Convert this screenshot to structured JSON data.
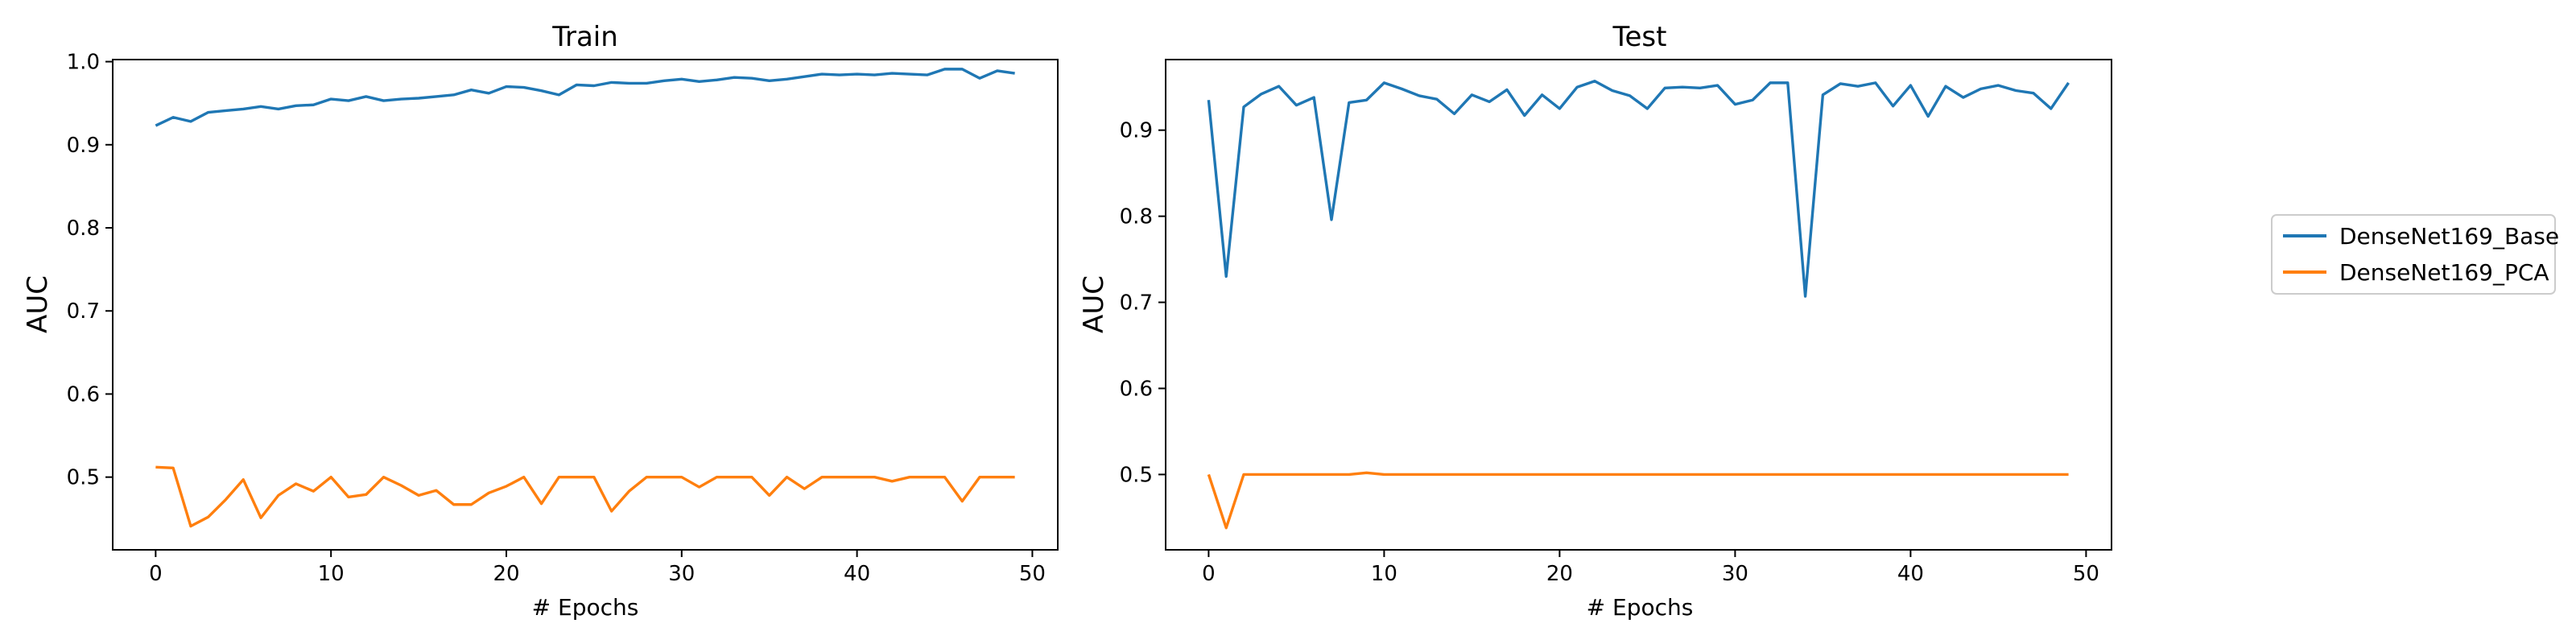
{
  "colors": {
    "base": "#1f77b4",
    "pca": "#ff7f0e",
    "legend_border": "#cccccc"
  },
  "legend": {
    "placement": "right-outside",
    "entries": [
      "DenseNet169_Base",
      "DenseNet169_PCA"
    ]
  },
  "chart_data": [
    {
      "type": "line",
      "title": "Train",
      "xlabel": "# Epochs",
      "ylabel": "AUC",
      "xlim": [
        -2.45,
        51.45
      ],
      "ylim": [
        0.4125,
        1.0025
      ],
      "xticks": [
        0,
        10,
        20,
        30,
        40,
        50
      ],
      "yticks": [
        0.5,
        0.6,
        0.7,
        0.8,
        0.9,
        1.0
      ],
      "ytick_labels": [
        "0.5",
        "0.6",
        "0.7",
        "0.8",
        "0.9",
        "1.0"
      ],
      "grid": false,
      "x": [
        0,
        1,
        2,
        3,
        4,
        5,
        6,
        7,
        8,
        9,
        10,
        11,
        12,
        13,
        14,
        15,
        16,
        17,
        18,
        19,
        20,
        21,
        22,
        23,
        24,
        25,
        26,
        27,
        28,
        29,
        30,
        31,
        32,
        33,
        34,
        35,
        36,
        37,
        38,
        39,
        40,
        41,
        42,
        43,
        44,
        45,
        46,
        47,
        48,
        49
      ],
      "series": [
        {
          "name": "DenseNet169_Base",
          "color": "#1f77b4",
          "values": [
            0.923,
            0.933,
            0.928,
            0.939,
            0.941,
            0.943,
            0.946,
            0.943,
            0.947,
            0.948,
            0.955,
            0.953,
            0.958,
            0.953,
            0.955,
            0.956,
            0.958,
            0.96,
            0.966,
            0.962,
            0.97,
            0.969,
            0.965,
            0.96,
            0.972,
            0.971,
            0.975,
            0.974,
            0.974,
            0.977,
            0.979,
            0.976,
            0.978,
            0.981,
            0.98,
            0.977,
            0.979,
            0.982,
            0.985,
            0.984,
            0.985,
            0.984,
            0.986,
            0.985,
            0.984,
            0.991,
            0.991,
            0.98,
            0.989,
            0.986
          ]
        },
        {
          "name": "DenseNet169_PCA",
          "color": "#ff7f0e",
          "values": [
            0.512,
            0.511,
            0.441,
            0.452,
            0.473,
            0.497,
            0.451,
            0.478,
            0.492,
            0.483,
            0.5,
            0.476,
            0.479,
            0.5,
            0.49,
            0.478,
            0.484,
            0.467,
            0.467,
            0.481,
            0.489,
            0.5,
            0.468,
            0.5,
            0.5,
            0.5,
            0.459,
            0.483,
            0.5,
            0.5,
            0.5,
            0.488,
            0.5,
            0.5,
            0.5,
            0.478,
            0.5,
            0.486,
            0.5,
            0.5,
            0.5,
            0.5,
            0.495,
            0.5,
            0.5,
            0.5,
            0.471,
            0.5,
            0.5,
            0.5
          ]
        }
      ]
    },
    {
      "type": "line",
      "title": "Test",
      "xlabel": "# Epochs",
      "ylabel": "AUC",
      "xlim": [
        -2.45,
        51.45
      ],
      "ylim": [
        0.4125,
        0.982
      ],
      "xticks": [
        0,
        10,
        20,
        30,
        40,
        50
      ],
      "yticks": [
        0.5,
        0.6,
        0.7,
        0.8,
        0.9
      ],
      "ytick_labels": [
        "0.5",
        "0.6",
        "0.7",
        "0.8",
        "0.9"
      ],
      "grid": false,
      "x": [
        0,
        1,
        2,
        3,
        4,
        5,
        6,
        7,
        8,
        9,
        10,
        11,
        12,
        13,
        14,
        15,
        16,
        17,
        18,
        19,
        20,
        21,
        22,
        23,
        24,
        25,
        26,
        27,
        28,
        29,
        30,
        31,
        32,
        33,
        34,
        35,
        36,
        37,
        38,
        39,
        40,
        41,
        42,
        43,
        44,
        45,
        46,
        47,
        48,
        49
      ],
      "series": [
        {
          "name": "DenseNet169_Base",
          "color": "#1f77b4",
          "values": [
            0.935,
            0.73,
            0.927,
            0.942,
            0.951,
            0.929,
            0.938,
            0.796,
            0.932,
            0.935,
            0.955,
            0.948,
            0.94,
            0.936,
            0.919,
            0.941,
            0.933,
            0.947,
            0.917,
            0.941,
            0.925,
            0.95,
            0.957,
            0.946,
            0.94,
            0.925,
            0.949,
            0.95,
            0.949,
            0.952,
            0.93,
            0.935,
            0.955,
            0.955,
            0.707,
            0.941,
            0.954,
            0.951,
            0.955,
            0.928,
            0.952,
            0.916,
            0.951,
            0.938,
            0.948,
            0.952,
            0.946,
            0.943,
            0.925,
            0.955
          ]
        },
        {
          "name": "DenseNet169_PCA",
          "color": "#ff7f0e",
          "values": [
            0.5,
            0.438,
            0.5,
            0.5,
            0.5,
            0.5,
            0.5,
            0.5,
            0.5,
            0.502,
            0.5,
            0.5,
            0.5,
            0.5,
            0.5,
            0.5,
            0.5,
            0.5,
            0.5,
            0.5,
            0.5,
            0.5,
            0.5,
            0.5,
            0.5,
            0.5,
            0.5,
            0.5,
            0.5,
            0.5,
            0.5,
            0.5,
            0.5,
            0.5,
            0.5,
            0.5,
            0.5,
            0.5,
            0.5,
            0.5,
            0.5,
            0.5,
            0.5,
            0.5,
            0.5,
            0.5,
            0.5,
            0.5,
            0.5,
            0.5
          ]
        }
      ]
    }
  ]
}
